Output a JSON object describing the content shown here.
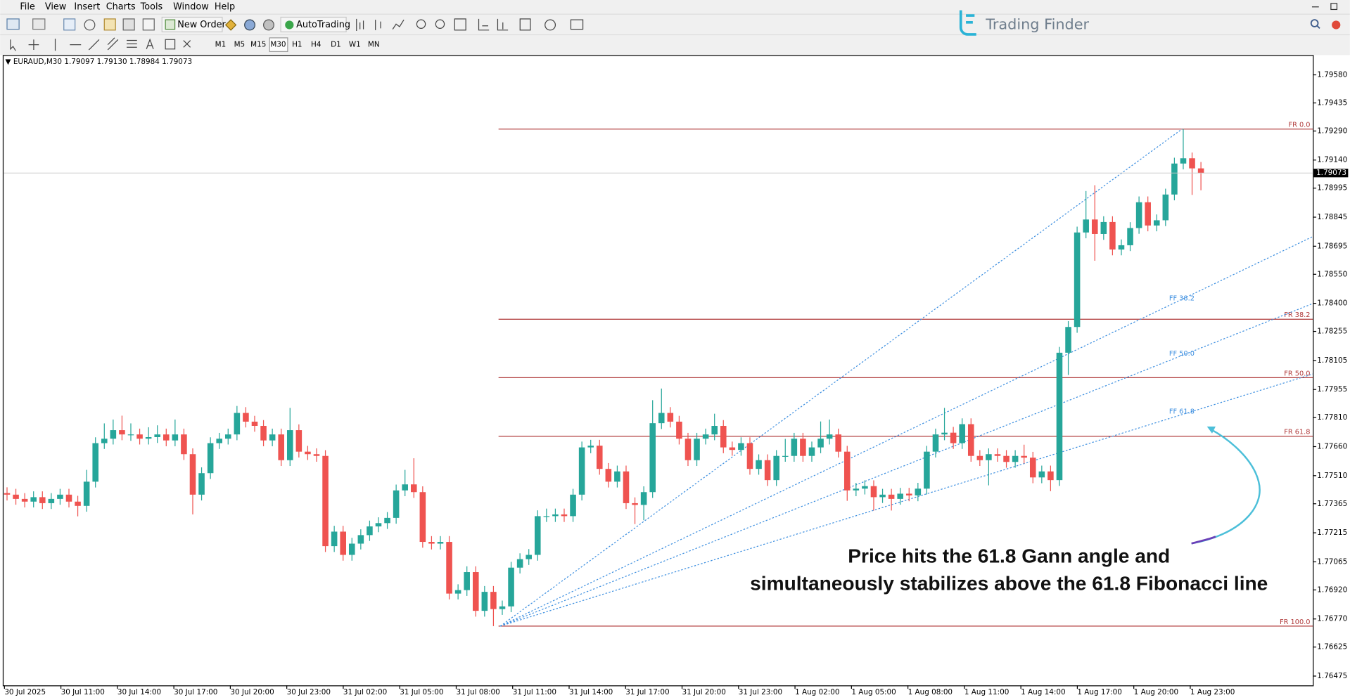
{
  "menu": [
    "File",
    "View",
    "Insert",
    "Charts",
    "Tools",
    "Window",
    "Help"
  ],
  "toolbar": {
    "new_order": "New Order",
    "auto_trading": "AutoTrading"
  },
  "timeframes": [
    "M1",
    "M5",
    "M15",
    "M30",
    "H1",
    "H4",
    "D1",
    "W1",
    "MN"
  ],
  "logo": "Trading Finder",
  "annotation": [
    "Price hits the 61.8 Gann angle and",
    "simultaneously stabilizes above the 61.8 Fibonacci line"
  ],
  "chart_data": {
    "type": "candlestick",
    "header": {
      "symbol": "EURAUD,M30",
      "open": "1.79097",
      "high": "1.79130",
      "low": "1.78984",
      "close": "1.79073"
    },
    "up_color": "#26a69a",
    "down_color": "#ef5350",
    "ylim": [
      1.76427,
      1.79669
    ],
    "yticks": [
      {
        "value": 1.7958,
        "label": "1.79580"
      },
      1.79435,
      {
        "value": 1.7929,
        "label": "1.79290"
      },
      {
        "value": 1.7914,
        "label": "1.79140"
      },
      1.78995,
      1.78845,
      1.78695,
      {
        "value": 1.7855,
        "label": "1.78550"
      },
      {
        "value": 1.784,
        "label": "1.78400"
      },
      1.78255,
      1.78105,
      1.77955,
      {
        "value": 1.7781,
        "label": "1.77810"
      },
      {
        "value": 1.7766,
        "label": "1.77660"
      },
      {
        "value": 1.7751,
        "label": "1.77510"
      },
      1.77365,
      1.77215,
      1.77065,
      {
        "value": 1.7692,
        "label": "1.76920"
      },
      {
        "value": 1.7677,
        "label": "1.76770"
      },
      1.76625,
      1.76475
    ],
    "x_labels": [
      "30 Jul 2025",
      "30 Jul 11:00",
      "30 Jul 14:00",
      "30 Jul 17:00",
      "30 Jul 20:00",
      "30 Jul 23:00",
      "31 Jul 02:00",
      "31 Jul 05:00",
      "31 Jul 08:00",
      "31 Jul 11:00",
      "31 Jul 14:00",
      "31 Jul 17:00",
      "31 Jul 20:00",
      "31 Jul 23:00",
      "1 Aug 02:00",
      "1 Aug 05:00",
      "1 Aug 08:00",
      "1 Aug 11:00",
      "1 Aug 14:00",
      "1 Aug 17:00",
      "1 Aug 20:00",
      "1 Aug 23:00"
    ],
    "open": [
      1.7742,
      1.77412,
      1.7739,
      1.77376,
      1.77399,
      1.77368,
      1.7739,
      1.77412,
      1.77376,
      1.77354,
      1.77479,
      1.77678,
      1.77701,
      1.77745,
      1.77723,
      1.77723,
      1.77701,
      1.77709,
      1.77723,
      1.77692,
      1.77723,
      1.77621,
      1.77412,
      1.77523,
      1.77678,
      1.77701,
      1.77723,
      1.77834,
      1.77789,
      1.77767,
      1.77692,
      1.77723,
      1.7759,
      1.77745,
      1.77634,
      1.77621,
      1.77612,
      1.77146,
      1.77221,
      1.77101,
      1.77159,
      1.77203,
      1.77248,
      1.77265,
      1.77292,
      1.77434,
      1.77465,
      1.77425,
      1.77168,
      1.77159,
      1.77168,
      1.76901,
      1.76919,
      1.77012,
      1.76812,
      1.7691,
      1.76821,
      1.76835,
      1.77035,
      1.77079,
      1.77101,
      1.77301,
      1.77301,
      1.7731,
      1.77301,
      1.77412,
      1.77656,
      1.77665,
      1.77545,
      1.77479,
      1.77532,
      1.77368,
      1.77359,
      1.77425,
      1.77781,
      1.77834,
      1.77789,
      1.77701,
      1.7759,
      1.77701,
      1.77723,
      1.77767,
      1.77656,
      1.77643,
      1.77678,
      1.77545,
      1.7759,
      1.77487,
      1.77612,
      1.77612,
      1.77701,
      1.77612,
      1.77656,
      1.77701,
      1.77723,
      1.77634,
      1.77434,
      1.77443,
      1.77456,
      1.77399,
      1.77412,
      1.7739,
      1.77417,
      1.77408,
      1.77443,
      1.77634,
      1.77723,
      1.77732,
      1.77678,
      1.77776,
      1.77612,
      1.7759,
      1.77621,
      1.77612,
      1.77581,
      1.77612,
      1.77603,
      1.77501,
      1.77532,
      1.77487,
      1.78145,
      1.78278,
      1.78766,
      1.78833,
      1.78758,
      1.7882,
      1.78678,
      1.787,
      1.78789,
      1.78922,
      1.78802,
      1.78829,
      1.78962,
      1.79122,
      1.79149,
      1.79097
    ],
    "high": [
      1.7745,
      1.77442,
      1.7742,
      1.77429,
      1.77429,
      1.7742,
      1.77442,
      1.77442,
      1.77406,
      1.7754,
      1.77708,
      1.7778,
      1.778,
      1.7782,
      1.7778,
      1.77753,
      1.7776,
      1.7777,
      1.77753,
      1.778,
      1.77753,
      1.77651,
      1.77553,
      1.77708,
      1.77731,
      1.77753,
      1.7787,
      1.77864,
      1.77819,
      1.77797,
      1.77753,
      1.77753,
      1.7786,
      1.77775,
      1.77664,
      1.77651,
      1.77642,
      1.77251,
      1.77251,
      1.77189,
      1.77233,
      1.77278,
      1.77295,
      1.77322,
      1.77464,
      1.7754,
      1.776,
      1.77455,
      1.77198,
      1.77198,
      1.77198,
      1.76949,
      1.77042,
      1.77042,
      1.7694,
      1.7694,
      1.76865,
      1.77065,
      1.77109,
      1.77131,
      1.77331,
      1.7734,
      1.7734,
      1.7734,
      1.77442,
      1.77686,
      1.77695,
      1.77695,
      1.77575,
      1.77562,
      1.77562,
      1.77398,
      1.77455,
      1.779,
      1.7796,
      1.77864,
      1.77819,
      1.77731,
      1.77731,
      1.77753,
      1.7783,
      1.77797,
      1.77686,
      1.77708,
      1.77708,
      1.7762,
      1.7762,
      1.77642,
      1.777,
      1.77731,
      1.77731,
      1.77686,
      1.7779,
      1.778,
      1.77753,
      1.77664,
      1.77473,
      1.77486,
      1.77486,
      1.77442,
      1.77442,
      1.77447,
      1.77447,
      1.77473,
      1.77664,
      1.77753,
      1.7786,
      1.77762,
      1.77806,
      1.77806,
      1.77642,
      1.77651,
      1.77651,
      1.77642,
      1.77642,
      1.7767,
      1.77633,
      1.77562,
      1.77562,
      1.78175,
      1.78308,
      1.78796,
      1.7898,
      1.7901,
      1.7885,
      1.7885,
      1.7873,
      1.78819,
      1.78952,
      1.78952,
      1.78859,
      1.78992,
      1.79152,
      1.793,
      1.79179,
      1.7913
    ],
    "low": [
      1.77382,
      1.7736,
      1.77346,
      1.77346,
      1.77338,
      1.77338,
      1.7736,
      1.77346,
      1.773,
      1.77324,
      1.77449,
      1.77648,
      1.77671,
      1.77693,
      1.7769,
      1.77671,
      1.77671,
      1.77679,
      1.77662,
      1.77662,
      1.77591,
      1.7731,
      1.77382,
      1.77493,
      1.77648,
      1.77671,
      1.77693,
      1.77759,
      1.77737,
      1.77662,
      1.77662,
      1.7756,
      1.7756,
      1.77604,
      1.77591,
      1.77582,
      1.77116,
      1.77116,
      1.77071,
      1.77071,
      1.77129,
      1.77173,
      1.77218,
      1.77235,
      1.77262,
      1.77404,
      1.77395,
      1.77138,
      1.77129,
      1.77129,
      1.76871,
      1.76871,
      1.76889,
      1.76782,
      1.76782,
      1.76733,
      1.76791,
      1.76805,
      1.77005,
      1.77049,
      1.77071,
      1.77271,
      1.77271,
      1.77271,
      1.77271,
      1.77382,
      1.77626,
      1.77515,
      1.77449,
      1.77449,
      1.77338,
      1.7726,
      1.7728,
      1.77395,
      1.77751,
      1.77759,
      1.77671,
      1.7756,
      1.7756,
      1.77671,
      1.77693,
      1.77626,
      1.77613,
      1.77613,
      1.77515,
      1.77515,
      1.77457,
      1.77457,
      1.77582,
      1.77582,
      1.77582,
      1.77582,
      1.77626,
      1.77671,
      1.77604,
      1.7738,
      1.77404,
      1.77413,
      1.7733,
      1.77369,
      1.7733,
      1.7736,
      1.77378,
      1.77378,
      1.77413,
      1.77604,
      1.77693,
      1.77648,
      1.77648,
      1.77582,
      1.7756,
      1.7746,
      1.77582,
      1.77551,
      1.77551,
      1.77573,
      1.77471,
      1.77471,
      1.7743,
      1.77457,
      1.7803,
      1.78248,
      1.78736,
      1.7862,
      1.78728,
      1.78648,
      1.78648,
      1.7867,
      1.78759,
      1.78772,
      1.78772,
      1.78799,
      1.78932,
      1.79092,
      1.7896,
      1.78984
    ],
    "close": [
      1.77412,
      1.7739,
      1.77376,
      1.77399,
      1.77368,
      1.7739,
      1.77412,
      1.77376,
      1.77354,
      1.77479,
      1.77678,
      1.77701,
      1.77745,
      1.77723,
      1.77723,
      1.77701,
      1.77709,
      1.77723,
      1.77692,
      1.77723,
      1.77621,
      1.77412,
      1.77523,
      1.77678,
      1.77701,
      1.77723,
      1.77834,
      1.77789,
      1.77767,
      1.77692,
      1.77723,
      1.7759,
      1.77745,
      1.77634,
      1.77621,
      1.77612,
      1.77146,
      1.77221,
      1.77101,
      1.77159,
      1.77203,
      1.77248,
      1.77265,
      1.77292,
      1.77434,
      1.77465,
      1.77425,
      1.77168,
      1.77159,
      1.77168,
      1.76901,
      1.76919,
      1.77012,
      1.76812,
      1.7691,
      1.76821,
      1.76835,
      1.77035,
      1.77079,
      1.77101,
      1.77301,
      1.77301,
      1.7731,
      1.77301,
      1.77412,
      1.77656,
      1.77665,
      1.77545,
      1.77479,
      1.77532,
      1.77368,
      1.77359,
      1.77425,
      1.77781,
      1.77834,
      1.77789,
      1.77701,
      1.7759,
      1.77701,
      1.77723,
      1.77767,
      1.77656,
      1.77643,
      1.77678,
      1.77545,
      1.7759,
      1.77487,
      1.77612,
      1.77612,
      1.77701,
      1.77612,
      1.77656,
      1.77701,
      1.77723,
      1.77634,
      1.77434,
      1.77443,
      1.77456,
      1.77399,
      1.77412,
      1.7739,
      1.77417,
      1.77408,
      1.77443,
      1.77634,
      1.77723,
      1.77732,
      1.77678,
      1.77776,
      1.77612,
      1.7759,
      1.77621,
      1.77612,
      1.77581,
      1.77612,
      1.77603,
      1.77501,
      1.77532,
      1.77487,
      1.78145,
      1.78278,
      1.78766,
      1.78833,
      1.78758,
      1.7882,
      1.78678,
      1.787,
      1.78789,
      1.78922,
      1.78802,
      1.78829,
      1.78962,
      1.79122,
      1.79149,
      1.79097,
      1.79073
    ],
    "fibo": {
      "color": "#b03a3a",
      "levels": [
        {
          "label": "FR 0.0",
          "price": 1.793
        },
        {
          "label": "FR 38.2",
          "price": 1.78318
        },
        {
          "label": "FR 50.0",
          "price": 1.78016
        },
        {
          "label": "FR 61.8",
          "price": 1.77714
        },
        {
          "label": "FR 100.0",
          "price": 1.76733
        }
      ]
    },
    "gann_fan": {
      "color": "#3d8fe0",
      "lines": [
        {
          "end_price": 1.793
        },
        {
          "label": "FF 38.2",
          "end_price": 1.78745
        },
        {
          "label": "FF 50.0",
          "end_price": 1.78399
        },
        {
          "label": "FF 61.8",
          "end_price": 1.78035
        }
      ]
    }
  }
}
